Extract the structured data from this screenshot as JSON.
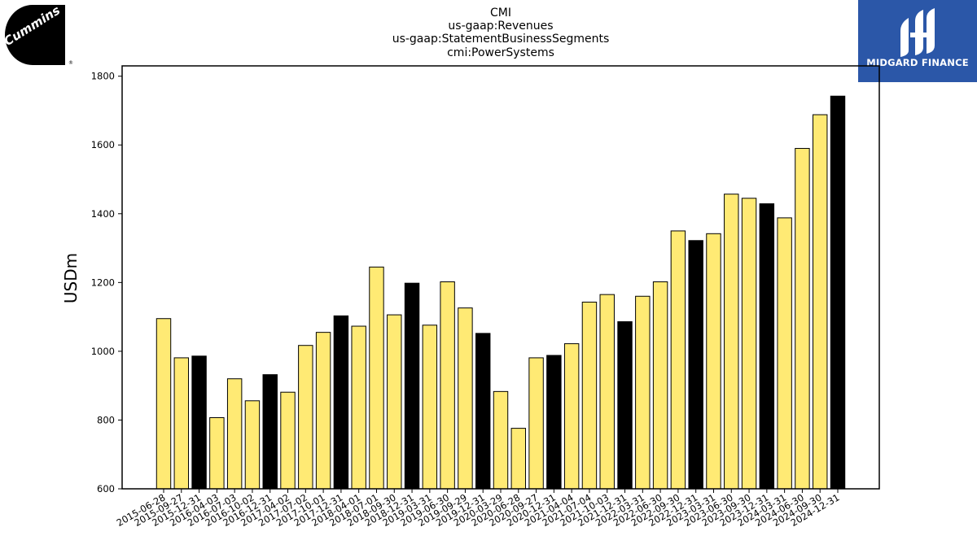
{
  "logos": {
    "left": {
      "text": "Cummins",
      "mark": "®"
    },
    "right": {
      "text": "MIDGARD FINANCE",
      "bg": "#2b57a8"
    }
  },
  "colors": {
    "bar_regular": "#ffea74",
    "bar_q4": "#000000",
    "bar_edge": "#000000"
  },
  "chart_data": {
    "type": "bar",
    "title": [
      "CMI",
      "us-gaap:Revenues",
      "us-gaap:StatementBusinessSegments",
      "cmi:PowerSystems"
    ],
    "xlabel": "",
    "ylabel": "USDm",
    "ylim": [
      600,
      1830
    ],
    "yticks": [
      600,
      800,
      1000,
      1200,
      1400,
      1600,
      1800
    ],
    "grid": false,
    "categories": [
      "2015-06-28",
      "2015-09-27",
      "2015-12-31",
      "2016-04-03",
      "2016-07-03",
      "2016-10-02",
      "2016-12-31",
      "2017-04-02",
      "2017-07-02",
      "2017-10-01",
      "2017-12-31",
      "2018-04-01",
      "2018-07-01",
      "2018-09-30",
      "2018-12-31",
      "2019-03-31",
      "2019-06-30",
      "2019-09-29",
      "2019-12-31",
      "2020-03-29",
      "2020-06-28",
      "2020-09-27",
      "2020-12-31",
      "2021-04-04",
      "2021-07-04",
      "2021-10-03",
      "2021-12-31",
      "2022-03-31",
      "2022-06-30",
      "2022-09-30",
      "2022-12-31",
      "2023-03-31",
      "2023-06-30",
      "2023-09-30",
      "2023-12-31",
      "2024-03-31",
      "2024-06-30",
      "2024-09-30",
      "2024-12-31"
    ],
    "values": [
      1095,
      981,
      986,
      807,
      920,
      856,
      932,
      881,
      1017,
      1055,
      1103,
      1073,
      1245,
      1106,
      1198,
      1076,
      1202,
      1126,
      1052,
      883,
      776,
      981,
      988,
      1022,
      1143,
      1165,
      1086,
      1160,
      1202,
      1350,
      1322,
      1342,
      1457,
      1445,
      1429,
      1388,
      1590,
      1688,
      1742
    ],
    "q4_flags": [
      false,
      false,
      true,
      false,
      false,
      false,
      true,
      false,
      false,
      false,
      true,
      false,
      false,
      false,
      true,
      false,
      false,
      false,
      true,
      false,
      false,
      false,
      true,
      false,
      false,
      false,
      true,
      false,
      false,
      false,
      true,
      false,
      false,
      false,
      true,
      false,
      false,
      false,
      true
    ]
  }
}
